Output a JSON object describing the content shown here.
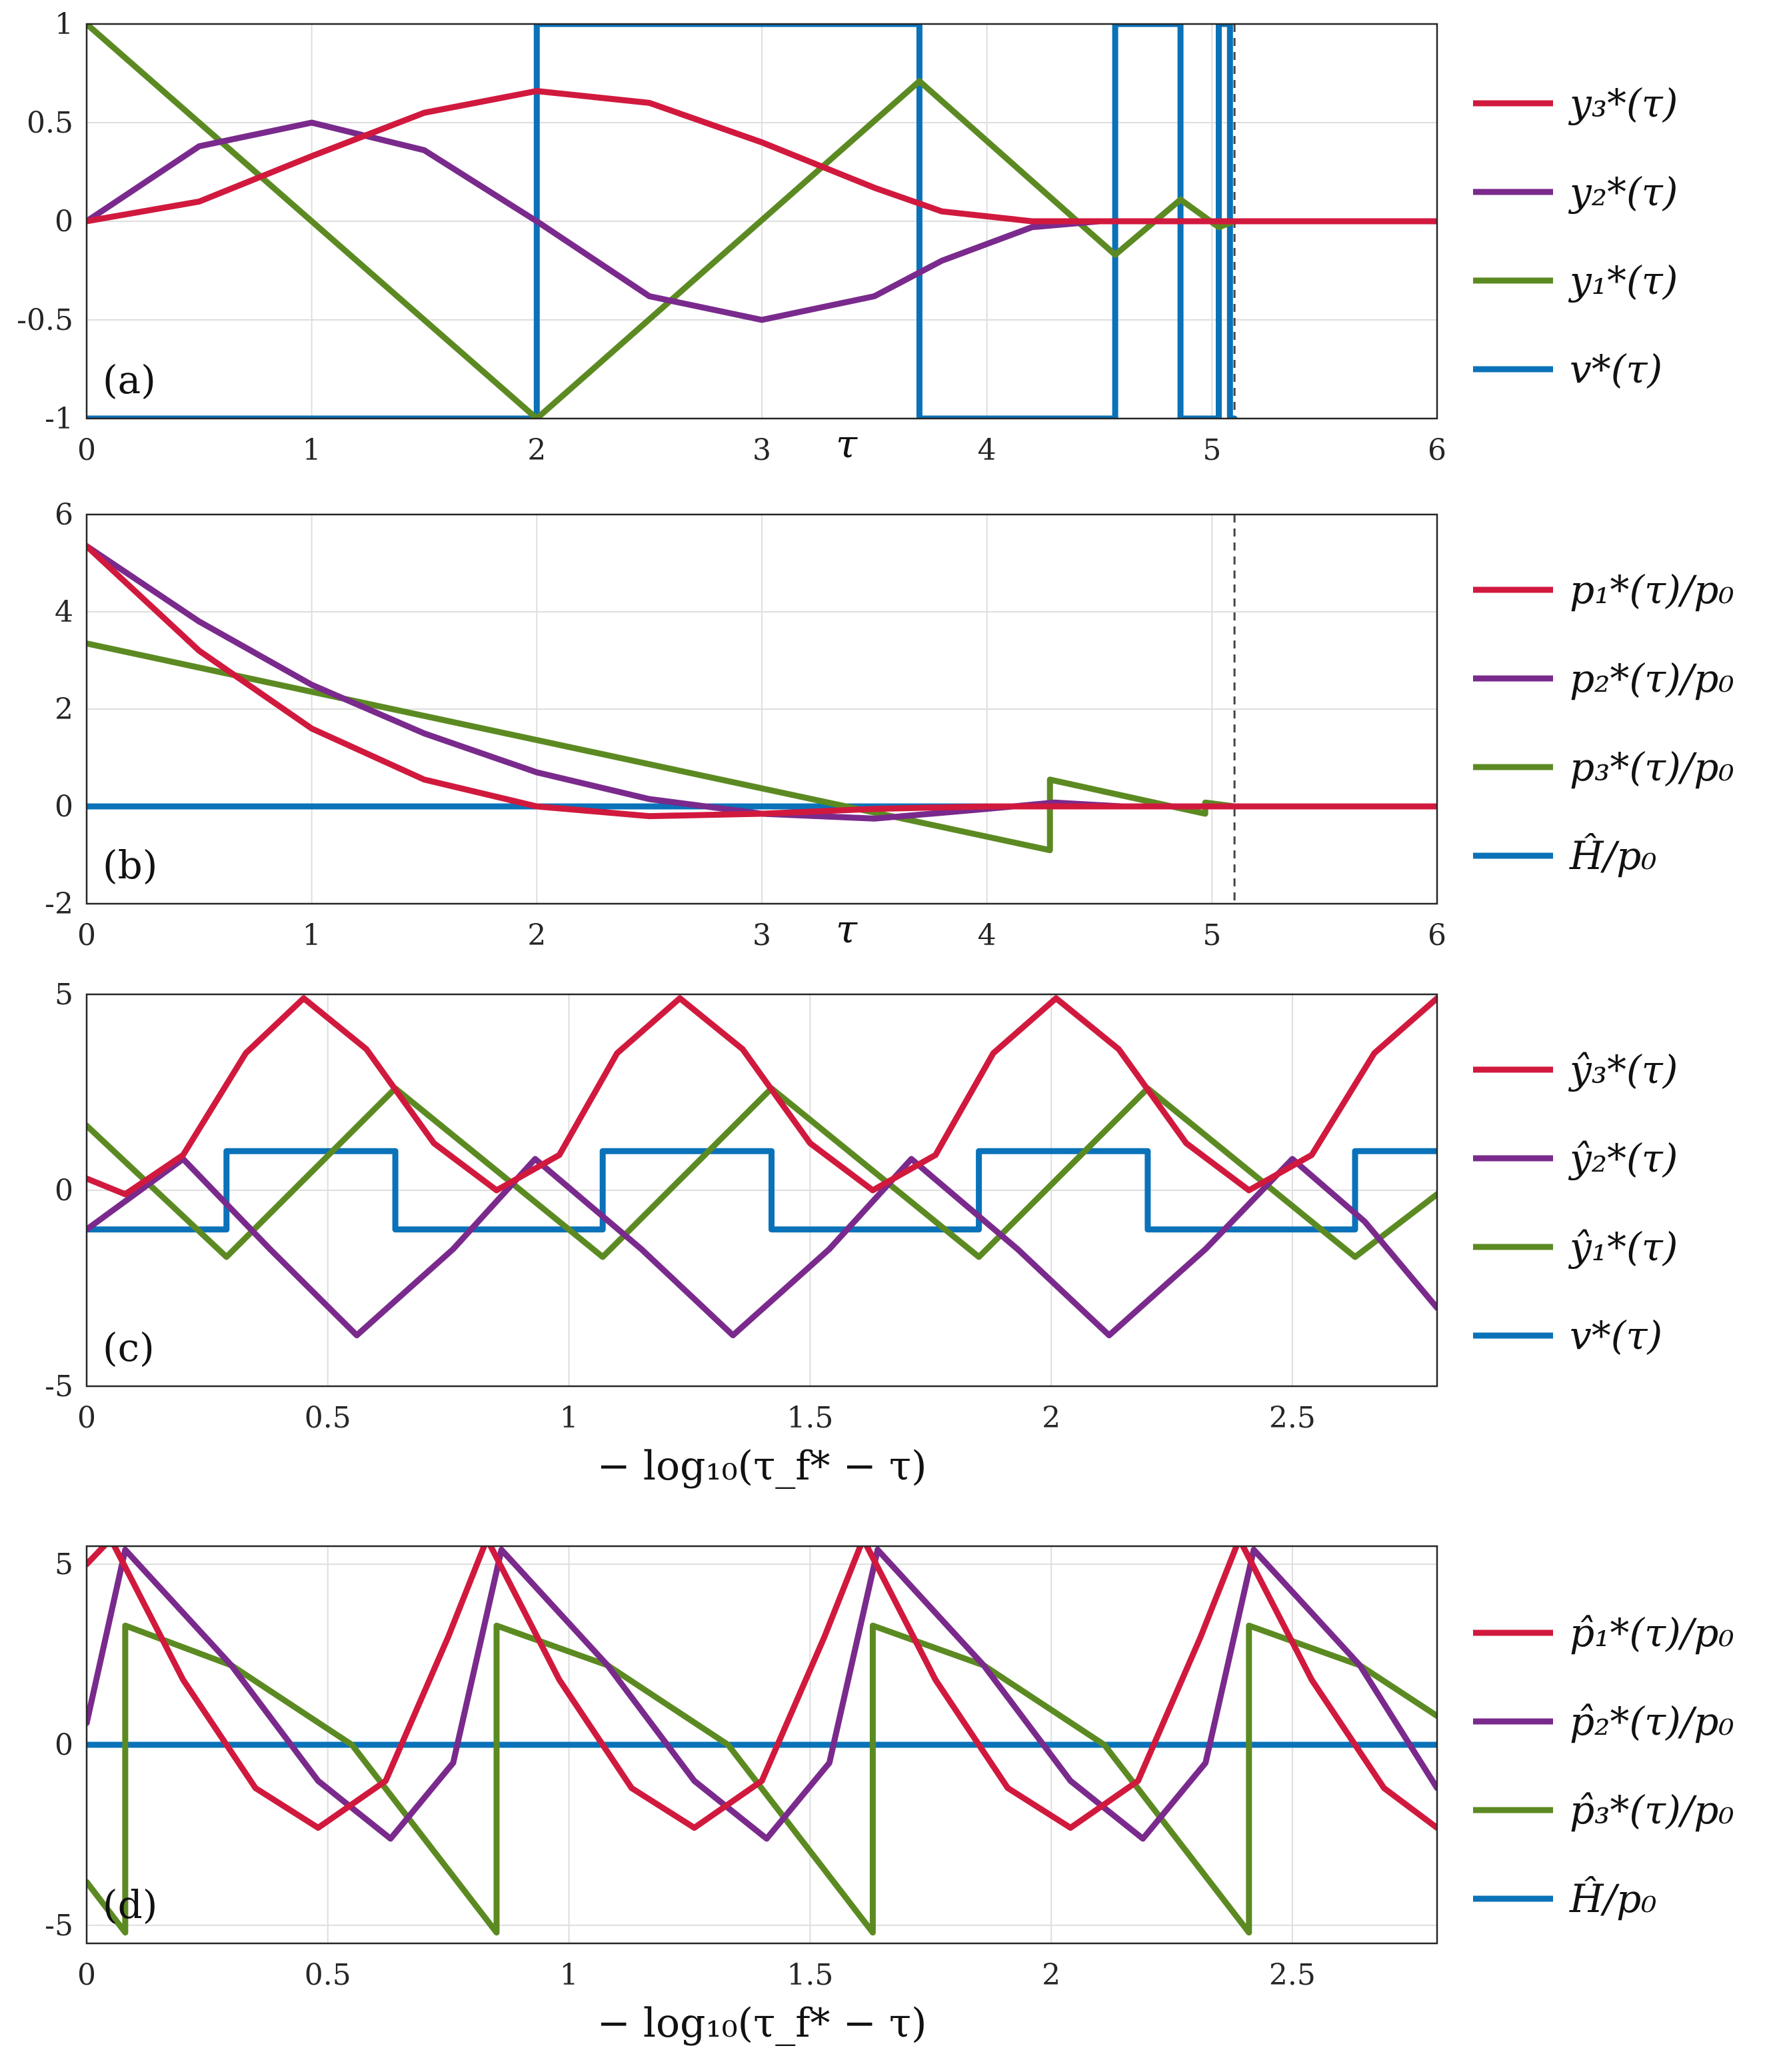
{
  "colors": {
    "red": "#d1193e",
    "purple": "#7a2a8c",
    "green": "#5c8a22",
    "blue": "#0a72b8"
  },
  "chart_data": [
    {
      "type": "line",
      "panel_tag": "(a)",
      "xlabel": "τ",
      "xlim": [
        0,
        6
      ],
      "ylim": [
        -1,
        1
      ],
      "xticks": [
        "0",
        "1",
        "2",
        "3",
        "4",
        "5",
        "6"
      ],
      "yticks": [
        "-1",
        "-0.5",
        "0",
        "0.5",
        "1"
      ],
      "grid": true,
      "legend_position": "right",
      "vertical_dashed_line_x": 5.1,
      "series": [
        {
          "name": "y₃*(τ)",
          "color": "red",
          "x": [
            0,
            0.5,
            1,
            1.5,
            2,
            2.5,
            3,
            3.5,
            3.8,
            4.2,
            4.6,
            5.0,
            5.1,
            6
          ],
          "y": [
            0,
            0.1,
            0.33,
            0.55,
            0.66,
            0.6,
            0.4,
            0.17,
            0.05,
            0.0,
            0.0,
            0.0,
            0.0,
            0.0
          ]
        },
        {
          "name": "y₂*(τ)",
          "color": "purple",
          "x": [
            0,
            0.5,
            1,
            1.5,
            2,
            2.5,
            3,
            3.5,
            3.8,
            4.2,
            4.5,
            4.9,
            5.1,
            6
          ],
          "y": [
            0,
            0.38,
            0.5,
            0.36,
            0,
            -0.38,
            -0.5,
            -0.38,
            -0.2,
            -0.03,
            0.0,
            0.0,
            0.0,
            0.0
          ]
        },
        {
          "name": "y₁*(τ)",
          "color": "green",
          "x": [
            0,
            2,
            3.7,
            4.57,
            4.86,
            5.03,
            5.1,
            6
          ],
          "y": [
            1,
            -1,
            0.71,
            -0.17,
            0.11,
            -0.03,
            0,
            0
          ]
        },
        {
          "name": "v*(τ)",
          "color": "blue",
          "step": true,
          "x": [
            0,
            2,
            2,
            3.7,
            3.7,
            4.57,
            4.57,
            4.86,
            4.86,
            5.03,
            5.03,
            5.08,
            5.08,
            5.1
          ],
          "y": [
            -1,
            -1,
            1,
            1,
            -1,
            -1,
            1,
            1,
            -1,
            -1,
            1,
            1,
            -1,
            -1
          ]
        }
      ]
    },
    {
      "type": "line",
      "panel_tag": "(b)",
      "xlabel": "τ",
      "xlim": [
        0,
        6
      ],
      "ylim": [
        -2,
        6
      ],
      "xticks": [
        "0",
        "1",
        "2",
        "3",
        "4",
        "5",
        "6"
      ],
      "yticks": [
        "-2",
        "0",
        "2",
        "4",
        "6"
      ],
      "grid": true,
      "legend_position": "right",
      "vertical_dashed_line_x": 5.1,
      "series": [
        {
          "name": "p₁*(τ)/p₀",
          "color": "red",
          "x": [
            0,
            0.5,
            1,
            1.5,
            2,
            2.5,
            3,
            3.5,
            4,
            4.5,
            5,
            6
          ],
          "y": [
            5.35,
            3.2,
            1.6,
            0.55,
            0.0,
            -0.2,
            -0.15,
            -0.05,
            0.0,
            0.0,
            0.0,
            0.0
          ]
        },
        {
          "name": "p₂*(τ)/p₀",
          "color": "purple",
          "x": [
            0,
            0.5,
            1,
            1.5,
            2,
            2.5,
            3,
            3.5,
            4,
            4.3,
            4.6,
            5,
            6
          ],
          "y": [
            5.35,
            3.8,
            2.5,
            1.5,
            0.7,
            0.15,
            -0.15,
            -0.25,
            -0.05,
            0.08,
            0.0,
            0.0,
            0.0
          ]
        },
        {
          "name": "p₃*(τ)/p₀",
          "color": "green",
          "x": [
            0,
            4.28,
            4.28,
            4.97,
            4.97,
            5.1,
            6
          ],
          "y": [
            3.35,
            -0.9,
            0.55,
            -0.15,
            0.08,
            0.0,
            0.0
          ]
        },
        {
          "name": "Ĥ/p₀",
          "color": "blue",
          "x": [
            0,
            6
          ],
          "y": [
            0,
            0
          ]
        }
      ]
    },
    {
      "type": "line",
      "panel_tag": "(c)",
      "xlabel": "− log₁₀(τ_f* − τ)",
      "xlim": [
        0,
        2.8
      ],
      "ylim": [
        -5,
        5
      ],
      "xticks": [
        "0",
        "0.5",
        "1",
        "1.5",
        "2",
        "2.5"
      ],
      "yticks": [
        "-5",
        "0",
        "5"
      ],
      "grid": true,
      "legend_position": "right",
      "series": [
        {
          "name": "ŷ₃*(τ)",
          "color": "red",
          "x": [
            0,
            0.08,
            0.2,
            0.33,
            0.45,
            0.58,
            0.72,
            0.85,
            0.98,
            1.1,
            1.23,
            1.36,
            1.5,
            1.63,
            1.76,
            1.88,
            2.01,
            2.14,
            2.28,
            2.41,
            2.54,
            2.67,
            2.8
          ],
          "y": [
            0.3,
            -0.1,
            0.9,
            3.5,
            4.9,
            3.6,
            1.2,
            0.0,
            0.9,
            3.5,
            4.9,
            3.6,
            1.2,
            0.0,
            0.9,
            3.5,
            4.9,
            3.6,
            1.2,
            0.0,
            0.9,
            3.5,
            4.9
          ]
        },
        {
          "name": "ŷ₂*(τ)",
          "color": "purple",
          "x": [
            0,
            0.2,
            0.38,
            0.56,
            0.76,
            0.93,
            1.15,
            1.34,
            1.54,
            1.71,
            1.93,
            2.12,
            2.32,
            2.5,
            2.65,
            2.8
          ],
          "y": [
            -1.0,
            0.8,
            -1.5,
            -3.7,
            -1.5,
            0.8,
            -1.5,
            -3.7,
            -1.5,
            0.8,
            -1.5,
            -3.7,
            -1.5,
            0.8,
            -0.8,
            -3.0
          ]
        },
        {
          "name": "ŷ₁*(τ)",
          "color": "green",
          "x": [
            0,
            0.29,
            0.64,
            1.07,
            1.42,
            1.85,
            2.2,
            2.63,
            2.8
          ],
          "y": [
            1.65,
            -1.7,
            2.6,
            -1.7,
            2.6,
            -1.7,
            2.6,
            -1.7,
            -0.1
          ]
        },
        {
          "name": "v*(τ)",
          "color": "blue",
          "step": true,
          "x": [
            0,
            0.29,
            0.29,
            0.64,
            0.64,
            1.07,
            1.07,
            1.42,
            1.42,
            1.85,
            1.85,
            2.2,
            2.2,
            2.63,
            2.63,
            2.8
          ],
          "y": [
            -1,
            -1,
            1,
            1,
            -1,
            -1,
            1,
            1,
            -1,
            -1,
            1,
            1,
            -1,
            -1,
            1,
            1
          ]
        }
      ]
    },
    {
      "type": "line",
      "panel_tag": "(d)",
      "xlabel": "− log₁₀(τ_f* − τ)",
      "xlim": [
        0,
        2.8
      ],
      "ylim": [
        -5.5,
        5.5
      ],
      "xticks": [
        "0",
        "0.5",
        "1",
        "1.5",
        "2",
        "2.5"
      ],
      "yticks": [
        "-5",
        "0",
        "5"
      ],
      "grid": true,
      "legend_position": "right",
      "series": [
        {
          "name": "p̂₁*(τ)/p₀",
          "color": "red",
          "x": [
            0,
            0.05,
            0.2,
            0.35,
            0.48,
            0.62,
            0.75,
            0.83,
            0.98,
            1.13,
            1.26,
            1.4,
            1.53,
            1.61,
            1.76,
            1.91,
            2.04,
            2.18,
            2.31,
            2.39,
            2.54,
            2.69,
            2.8
          ],
          "y": [
            5.0,
            5.7,
            1.8,
            -1.2,
            -2.3,
            -1.0,
            3.0,
            5.7,
            1.8,
            -1.2,
            -2.3,
            -1.0,
            3.0,
            5.7,
            1.8,
            -1.2,
            -2.3,
            -1.0,
            3.0,
            5.7,
            1.8,
            -1.2,
            -2.3
          ]
        },
        {
          "name": "p̂₂*(τ)/p₀",
          "color": "purple",
          "x": [
            0,
            0.08,
            0.3,
            0.48,
            0.63,
            0.76,
            0.86,
            1.08,
            1.26,
            1.41,
            1.54,
            1.64,
            1.86,
            2.04,
            2.19,
            2.32,
            2.42,
            2.64,
            2.8
          ],
          "y": [
            0.6,
            5.4,
            2.2,
            -1.0,
            -2.6,
            -0.5,
            5.4,
            2.2,
            -1.0,
            -2.6,
            -0.5,
            5.4,
            2.2,
            -1.0,
            -2.6,
            -0.5,
            5.4,
            2.2,
            -1.2
          ]
        },
        {
          "name": "p̂₃*(τ)/p₀",
          "color": "green",
          "x": [
            0,
            0.08,
            0.08,
            0.3,
            0.55,
            0.85,
            0.85,
            1.08,
            1.33,
            1.63,
            1.63,
            1.86,
            2.11,
            2.41,
            2.41,
            2.64,
            2.8
          ],
          "y": [
            -3.8,
            -5.2,
            3.3,
            2.2,
            0.0,
            -5.2,
            3.3,
            2.2,
            0.0,
            -5.2,
            3.3,
            2.2,
            0.0,
            -5.2,
            3.3,
            2.2,
            0.8
          ]
        },
        {
          "name": "Ĥ/p₀",
          "color": "blue",
          "x": [
            0,
            2.8
          ],
          "y": [
            0,
            0
          ]
        }
      ]
    }
  ]
}
